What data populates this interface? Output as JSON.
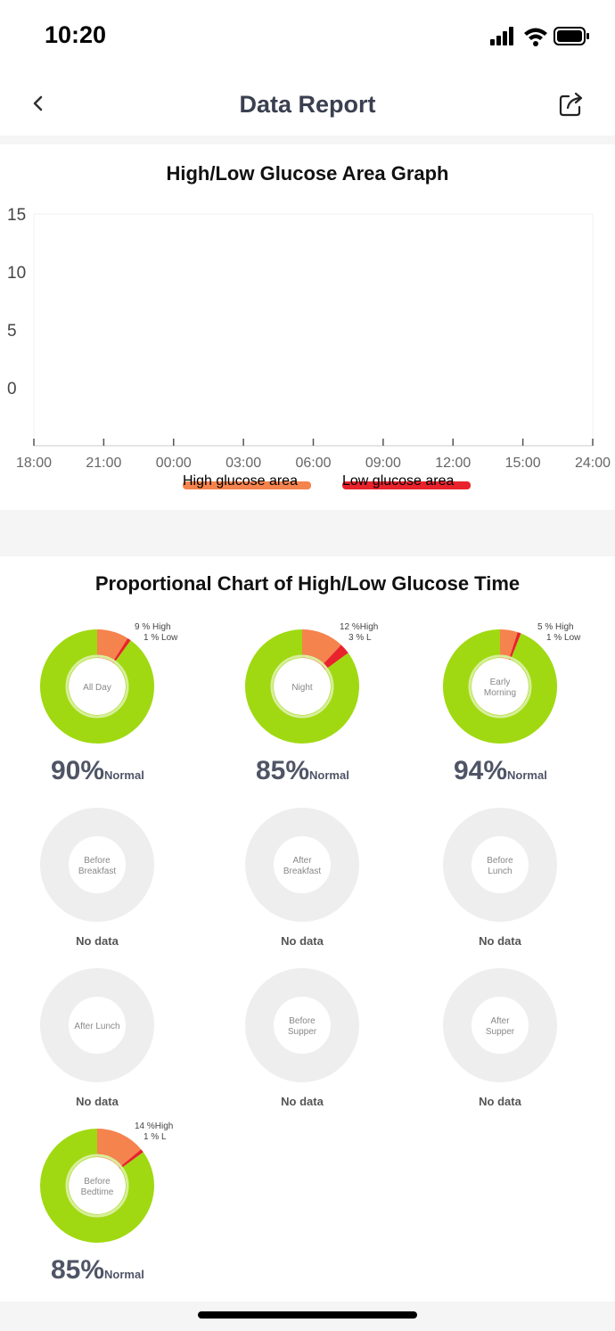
{
  "status": {
    "time": "10:20"
  },
  "nav": {
    "title": "Data Report",
    "back_icon": "chevron-left-icon",
    "share_icon": "share-icon"
  },
  "area_graph": {
    "title": "High/Low Glucose Area Graph",
    "legend": [
      {
        "label": "High glucose area",
        "color": "#f5834d"
      },
      {
        "label": "Low glucose area",
        "color": "#e8232c"
      }
    ]
  },
  "proportion": {
    "title": "Proportional Chart of High/Low Glucose Time"
  },
  "chart_data": [
    {
      "type": "area",
      "title": "High/Low Glucose Area Graph",
      "x_ticks": [
        "18:00",
        "21:00",
        "00:00",
        "03:00",
        "06:00",
        "09:00",
        "12:00",
        "15:00",
        "24:00"
      ],
      "y_ticks": [
        15,
        10,
        5,
        0
      ],
      "ylim": [
        -5,
        15
      ],
      "series": [
        {
          "name": "High glucose area",
          "values": []
        },
        {
          "name": "Low glucose area",
          "values": []
        }
      ],
      "grid": false,
      "legend_position": "bottom"
    },
    {
      "type": "pie",
      "title": "Proportional Chart of High/Low Glucose Time",
      "colors": {
        "normal": "#a0d911",
        "high": "#f5834d",
        "low": "#e8232c",
        "empty": "#eeeeee"
      },
      "donuts": [
        {
          "label_lines": [
            "All Day"
          ],
          "normal": 90,
          "high": 9,
          "low": 1,
          "high_label": "9 %  High",
          "low_label": "1 %  Low",
          "pct_label": "90%",
          "normal_word": "Normal"
        },
        {
          "label_lines": [
            "Night"
          ],
          "normal": 85,
          "high": 12,
          "low": 3,
          "high_label": "12 %High",
          "low_label": "3 %  L",
          "pct_label": "85%",
          "normal_word": "Normal"
        },
        {
          "label_lines": [
            "Early",
            "Morning"
          ],
          "normal": 94,
          "high": 5,
          "low": 1,
          "high_label": "5 %  High",
          "low_label": "1 %  Low",
          "pct_label": "94%",
          "normal_word": "Normal"
        },
        {
          "label_lines": [
            "Before",
            "Breakfast"
          ],
          "nodata": "No data"
        },
        {
          "label_lines": [
            "After",
            "Breakfast"
          ],
          "nodata": "No data"
        },
        {
          "label_lines": [
            "Before",
            "Lunch"
          ],
          "nodata": "No data"
        },
        {
          "label_lines": [
            "After Lunch"
          ],
          "nodata": "No data"
        },
        {
          "label_lines": [
            "Before",
            "Supper"
          ],
          "nodata": "No data"
        },
        {
          "label_lines": [
            "After",
            "Supper"
          ],
          "nodata": "No data"
        },
        {
          "label_lines": [
            "Before",
            "Bedtime"
          ],
          "normal": 85,
          "high": 14,
          "low": 1,
          "high_label": "14 %High",
          "low_label": "1 %  L",
          "pct_label": "85%",
          "normal_word": "Normal"
        }
      ]
    }
  ]
}
